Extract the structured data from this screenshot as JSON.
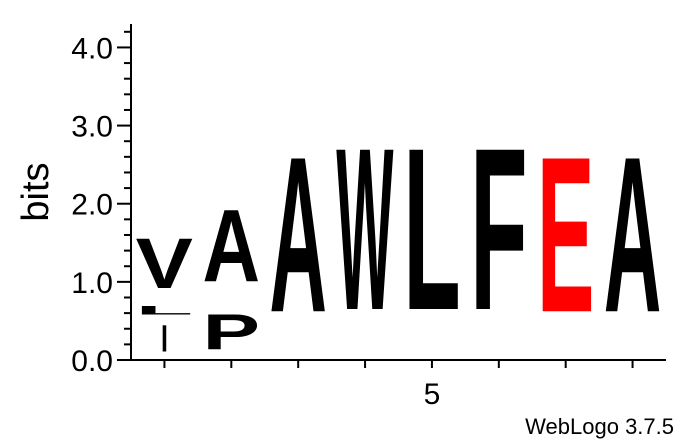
{
  "chart_data": {
    "type": "sequence-logo",
    "ylabel": "bits",
    "ylim": [
      0,
      4.3
    ],
    "yticks": [
      "0.0",
      "1.0",
      "2.0",
      "3.0",
      "4.0"
    ],
    "xtick_labels": [
      {
        "position": 5,
        "label": "5"
      }
    ],
    "xlim": [
      0.5,
      8.5
    ],
    "positions": [
      {
        "pos": 1,
        "letters": [
          {
            "char": "I",
            "start": 0.0,
            "end": 0.55,
            "color": "#000000"
          },
          {
            "char": "L",
            "start": 0.55,
            "end": 0.72,
            "color": "#000000"
          },
          {
            "char": "V",
            "start": 0.72,
            "end": 1.75,
            "color": "#000000"
          }
        ]
      },
      {
        "pos": 2,
        "letters": [
          {
            "char": "P",
            "start": 0.0,
            "end": 0.72,
            "color": "#000000"
          },
          {
            "char": "A",
            "start": 0.72,
            "end": 2.2,
            "color": "#000000"
          }
        ]
      },
      {
        "pos": 3,
        "letters": [
          {
            "char": "A",
            "start": 0.0,
            "end": 3.18,
            "color": "#000000"
          }
        ]
      },
      {
        "pos": 4,
        "letters": [
          {
            "char": "W",
            "start": 0.0,
            "end": 3.32,
            "color": "#000000"
          }
        ]
      },
      {
        "pos": 5,
        "letters": [
          {
            "char": "L",
            "start": 0.0,
            "end": 3.32,
            "color": "#000000"
          }
        ]
      },
      {
        "pos": 6,
        "letters": [
          {
            "char": "F",
            "start": 0.0,
            "end": 3.32,
            "color": "#000000"
          }
        ]
      },
      {
        "pos": 7,
        "letters": [
          {
            "char": "E",
            "start": 0.0,
            "end": 3.18,
            "color": "#ff0000"
          }
        ]
      },
      {
        "pos": 8,
        "letters": [
          {
            "char": "A",
            "start": 0.0,
            "end": 3.18,
            "color": "#000000"
          }
        ]
      }
    ]
  },
  "credit": "WebLogo 3.7.5"
}
